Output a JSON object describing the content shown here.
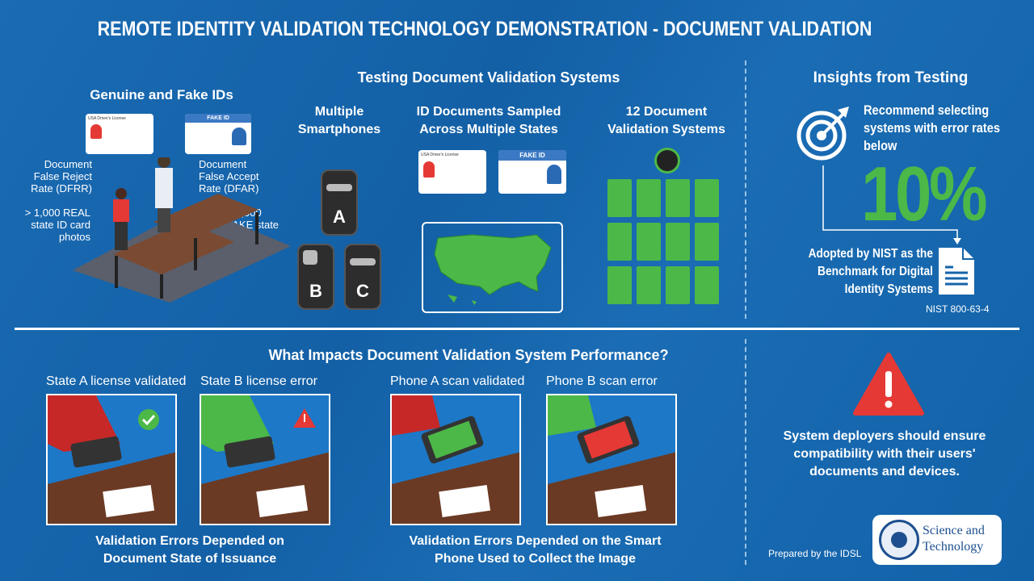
{
  "title": "REMOTE IDENTITY VALIDATION TECHNOLOGY DEMONSTRATION - DOCUMENT VALIDATION",
  "colors": {
    "background": "#1463aa",
    "accent_green": "#4cb848",
    "alert_red": "#e53935"
  },
  "genuine_fake": {
    "heading": "Genuine and Fake IDs",
    "real_card_title": "USA Driver's License",
    "fake_card_title": "FAKE ID",
    "dfrr": "Document False Reject Rate (DFRR)",
    "dfar": "Document False Accept Rate (DFAR)",
    "real_count": "> 1,000 REAL state ID card photos",
    "fake_count": "> 1,000 FAKE state ID card photos"
  },
  "testing": {
    "heading": "Testing Document Validation Systems",
    "phones_heading": "Multiple Smartphones",
    "phones": [
      "A",
      "B",
      "C"
    ],
    "docs_heading": "ID Documents Sampled Across Multiple States",
    "real_card_title": "USA Driver's License",
    "fake_card_title": "FAKE ID",
    "systems_heading": "12 Document Validation Systems"
  },
  "insights": {
    "heading": "Insights from Testing",
    "recommend": "Recommend selecting systems with error rates below",
    "threshold": "10%",
    "adopted": "Adopted by NIST as the Benchmark for Digital Identity Systems",
    "standard": "NIST 800-63-4"
  },
  "impacts": {
    "heading": "What Impacts Document Validation System Performance?",
    "photos": [
      {
        "label": "State A license validated",
        "status": "check-icon"
      },
      {
        "label": "State B license error",
        "status": "warning-icon"
      },
      {
        "label": "Phone A scan validated",
        "status": "check-icon"
      },
      {
        "label": "Phone B scan error",
        "status": "warning-icon"
      }
    ],
    "caption_state": "Validation Errors Depended on Document State of Issuance",
    "caption_phone": "Validation Errors Depended on the Smart Phone Used to Collect the Image"
  },
  "warning": {
    "text": "System deployers should ensure compatibility with their users' documents and devices."
  },
  "footer": {
    "prepared_by": "Prepared by the IDSL",
    "logo_text": "Science and Technology"
  }
}
